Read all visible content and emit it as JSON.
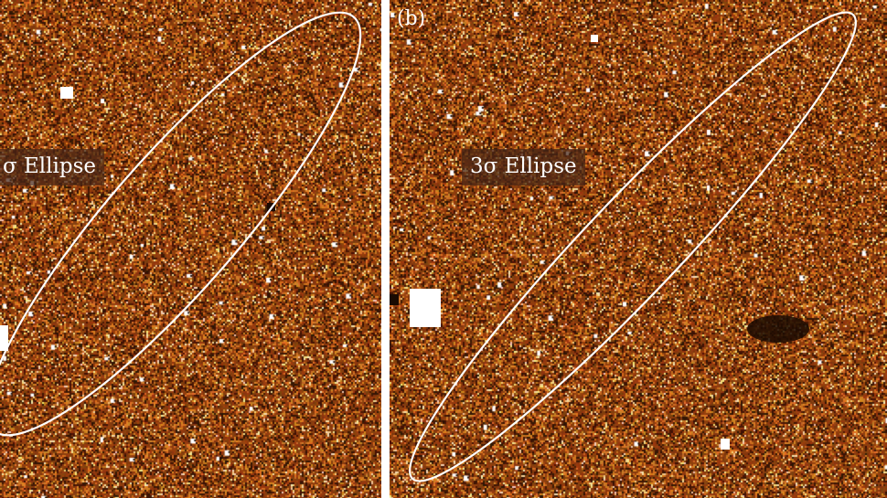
{
  "panels": [
    {
      "id": "a",
      "tag": "",
      "label": "σ Ellipse"
    },
    {
      "id": "b",
      "tag": "(b)",
      "label": "3σ Ellipse"
    }
  ],
  "colors": {
    "background_noise": "#8a3a08",
    "bright_noise": "#f0a040",
    "ellipse_stroke": "#ffffff",
    "separator": "#ffffff"
  }
}
